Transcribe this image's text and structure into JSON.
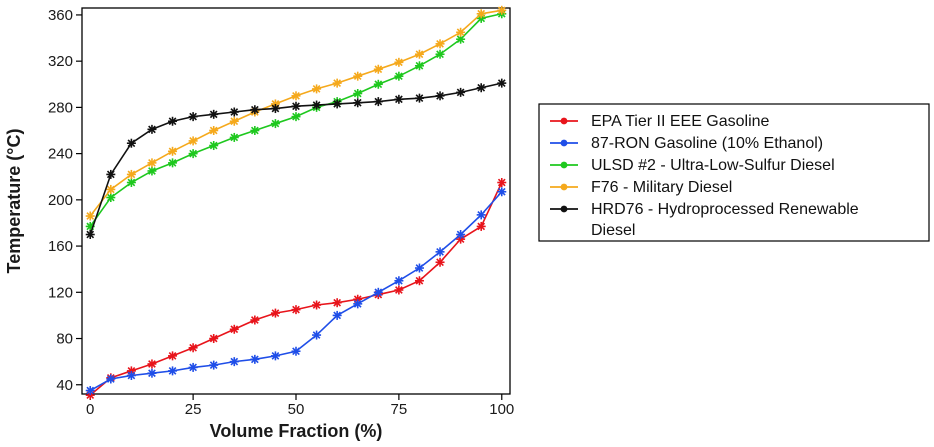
{
  "chart_data": {
    "type": "line",
    "xlabel": "Volume Fraction (%)",
    "ylabel": "Temperature (°C)",
    "xlim": [
      -2,
      102
    ],
    "ylim": [
      32,
      366
    ],
    "xticks": [
      0,
      25,
      50,
      75,
      100
    ],
    "yticks": [
      40,
      80,
      120,
      160,
      200,
      240,
      280,
      320,
      360
    ],
    "legend_position": "right",
    "grid": false,
    "x": [
      0,
      5,
      10,
      15,
      20,
      25,
      30,
      35,
      40,
      45,
      50,
      55,
      60,
      65,
      70,
      75,
      80,
      85,
      90,
      95,
      100
    ],
    "series": [
      {
        "name": "EPA Tier II EEE Gasoline",
        "color": "#e8141b",
        "values": [
          31,
          46,
          52,
          58,
          65,
          72,
          80,
          88,
          96,
          102,
          105,
          109,
          111,
          114,
          118,
          122,
          130,
          146,
          166,
          177,
          215
        ]
      },
      {
        "name": "87-RON Gasoline (10% Ethanol)",
        "color": "#1f4ee8",
        "values": [
          35,
          45,
          48,
          50,
          52,
          55,
          57,
          60,
          62,
          65,
          69,
          83,
          100,
          110,
          120,
          130,
          141,
          155,
          170,
          187,
          207
        ]
      },
      {
        "name": "ULSD #2 - Ultra-Low-Sulfur Diesel",
        "color": "#1ec81e",
        "values": [
          177,
          202,
          215,
          225,
          232,
          240,
          247,
          254,
          260,
          266,
          272,
          280,
          285,
          292,
          300,
          307,
          316,
          326,
          339,
          357,
          361
        ]
      },
      {
        "name": "F76 - Military Diesel",
        "color": "#f5a91c",
        "values": [
          186,
          209,
          222,
          232,
          242,
          251,
          260,
          268,
          276,
          283,
          290,
          296,
          301,
          307,
          313,
          319,
          326,
          335,
          345,
          361,
          364
        ]
      },
      {
        "name": "HRD76 - Hydroprocessed Renewable Diesel",
        "color": "#111111",
        "values": [
          170,
          222,
          249,
          261,
          268,
          272,
          274,
          276,
          278,
          279,
          281,
          282,
          283,
          284,
          285,
          287,
          288,
          290,
          293,
          297,
          301
        ]
      }
    ],
    "legend_lines": [
      [
        "EPA Tier II EEE Gasoline"
      ],
      [
        "87-RON Gasoline (10% Ethanol)"
      ],
      [
        "ULSD #2 - Ultra-Low-Sulfur Diesel"
      ],
      [
        "F76 - Military Diesel"
      ],
      [
        "HRD76 - Hydroprocessed Renewable",
        "Diesel"
      ]
    ]
  }
}
